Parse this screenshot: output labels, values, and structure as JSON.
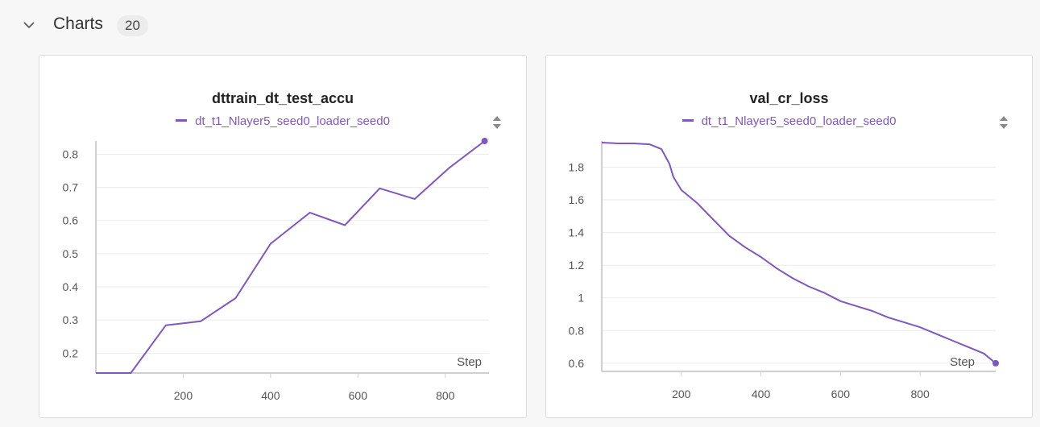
{
  "section": {
    "title": "Charts",
    "count": "20"
  },
  "colors": {
    "series": "#7e57c2",
    "grid": "#ebebeb",
    "axis": "#cfcfcf"
  },
  "panels": [
    {
      "title": "dttrain_dt_test_accu",
      "legend": "dt_t1_Nlayer5_seed0_loader_seed0",
      "xlabel": "Step"
    },
    {
      "title": "val_cr_loss",
      "legend": "dt_t1_Nlayer5_seed0_loader_seed0",
      "xlabel": "Step"
    }
  ],
  "chart_data": [
    {
      "type": "line",
      "title": "dttrain_dt_test_accu",
      "xlabel": "Step",
      "ylabel": "",
      "series": [
        {
          "name": "dt_t1_Nlayer5_seed0_loader_seed0",
          "x": [
            0,
            80,
            160,
            240,
            320,
            400,
            490,
            570,
            650,
            730,
            810,
            890
          ],
          "y": [
            0.14,
            0.14,
            0.284,
            0.296,
            0.366,
            0.53,
            0.624,
            0.586,
            0.697,
            0.665,
            0.76,
            0.84
          ]
        }
      ],
      "xticks": [
        200,
        400,
        600,
        800
      ],
      "yticks": [
        0.2,
        0.3,
        0.4,
        0.5,
        0.6,
        0.7,
        0.8
      ],
      "xlim": [
        0,
        900
      ],
      "ylim": [
        0.14,
        0.84
      ],
      "grid": true
    },
    {
      "type": "line",
      "title": "val_cr_loss",
      "xlabel": "Step",
      "ylabel": "",
      "series": [
        {
          "name": "dt_t1_Nlayer5_seed0_loader_seed0",
          "x": [
            0,
            40,
            80,
            120,
            150,
            170,
            180,
            200,
            240,
            280,
            320,
            360,
            400,
            440,
            480,
            520,
            560,
            600,
            640,
            680,
            720,
            760,
            800,
            840,
            880,
            920,
            960,
            990
          ],
          "y": [
            1.95,
            1.945,
            1.945,
            1.94,
            1.91,
            1.82,
            1.74,
            1.66,
            1.58,
            1.48,
            1.38,
            1.31,
            1.25,
            1.18,
            1.12,
            1.07,
            1.03,
            0.98,
            0.95,
            0.92,
            0.88,
            0.85,
            0.82,
            0.78,
            0.74,
            0.7,
            0.66,
            0.6
          ]
        }
      ],
      "xticks": [
        200,
        400,
        600,
        800
      ],
      "yticks": [
        0.6,
        0.8,
        1,
        1.2,
        1.4,
        1.6,
        1.8
      ],
      "xlim": [
        0,
        990
      ],
      "ylim": [
        0.55,
        1.96
      ],
      "grid": true
    }
  ]
}
